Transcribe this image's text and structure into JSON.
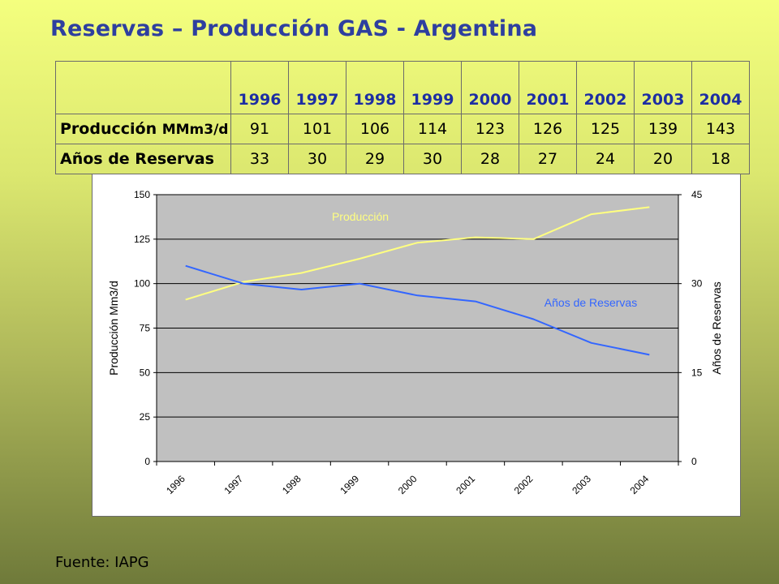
{
  "slide": {
    "title": "Reservas – Producción GAS - Argentina",
    "source": "Fuente: IAPG"
  },
  "table": {
    "years": [
      "1996",
      "1997",
      "1998",
      "1999",
      "2000",
      "2001",
      "2002",
      "2003",
      "2004"
    ],
    "rows": [
      {
        "label": "Producción",
        "unit": "MMm3/d",
        "values": [
          "91",
          "101",
          "106",
          "114",
          "123",
          "126",
          "125",
          "139",
          "143"
        ]
      },
      {
        "label": "Años de Reservas",
        "unit": "",
        "values": [
          "33",
          "30",
          "29",
          "30",
          "28",
          "27",
          "24",
          "20",
          "18"
        ]
      }
    ]
  },
  "chart_data": {
    "type": "line",
    "categories": [
      "1996",
      "1997",
      "1998",
      "1999",
      "2000",
      "2001",
      "2002",
      "2003",
      "2004"
    ],
    "series": [
      {
        "name": "Producción",
        "axis": "left",
        "color": "#ffff80",
        "values": [
          91,
          101,
          106,
          114,
          123,
          126,
          125,
          139,
          143
        ]
      },
      {
        "name": "Años de Reservas",
        "axis": "right",
        "color": "#3366ff",
        "values": [
          33,
          30,
          29,
          30,
          28,
          27,
          24,
          20,
          18
        ]
      }
    ],
    "y_left": {
      "label": "Producción Mm3/d",
      "min": 0,
      "max": 150,
      "ticks": [
        0,
        25,
        50,
        75,
        100,
        125,
        150
      ]
    },
    "y_right": {
      "label": "Años de Reservas",
      "min": 0,
      "max": 45,
      "ticks": [
        0,
        15,
        30,
        45
      ]
    },
    "grid": true,
    "plot_background": "#c0c0c0",
    "series_labels": "inline"
  }
}
